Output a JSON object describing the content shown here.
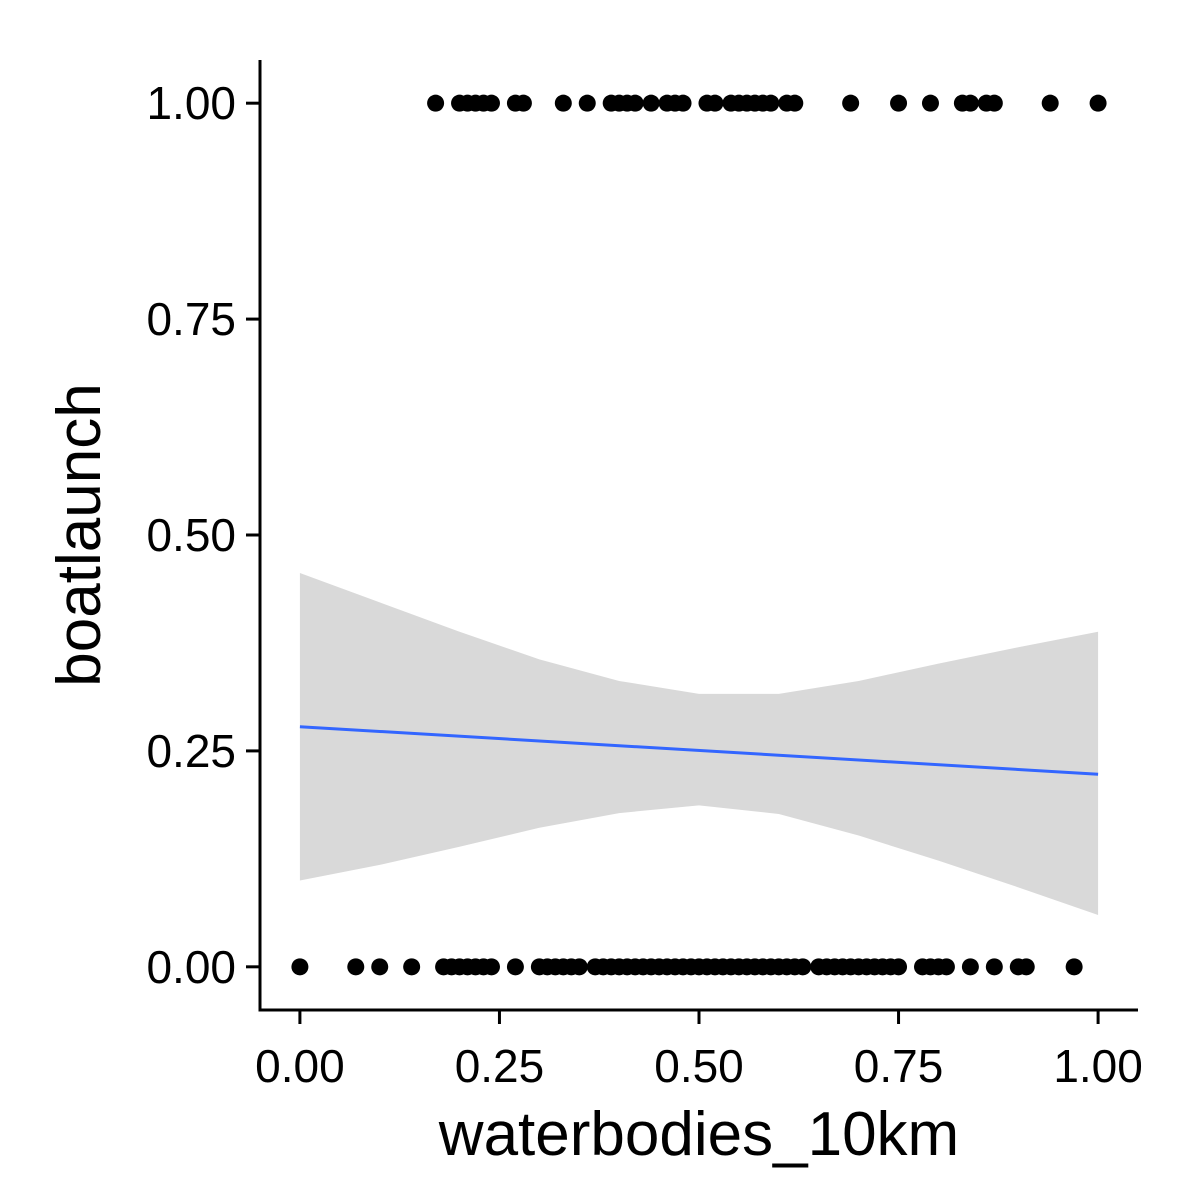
{
  "chart_data": {
    "type": "scatter",
    "title": "",
    "xlabel": "waterbodies_10km",
    "ylabel": "boatlaunch",
    "xlim": [
      -0.05,
      1.05
    ],
    "ylim": [
      -0.05,
      1.05
    ],
    "x_ticks": [
      0,
      0.25,
      0.5,
      0.75,
      1
    ],
    "x_tick_labels": [
      "0.00",
      "0.25",
      "0.50",
      "0.75",
      "1.00"
    ],
    "y_ticks": [
      0,
      0.25,
      0.5,
      0.75,
      1
    ],
    "y_tick_labels": [
      "0.00",
      "0.25",
      "0.50",
      "0.75",
      "1.00"
    ],
    "grid": false,
    "legend": "none",
    "colors": {
      "points": "#000000",
      "fit_line": "#3366ff",
      "ribbon": "#d9d9d9"
    },
    "series": [
      {
        "kind": "points",
        "x": [
          0.17,
          0.2,
          0.21,
          0.22,
          0.23,
          0.24,
          0.27,
          0.28,
          0.33,
          0.36,
          0.39,
          0.4,
          0.41,
          0.42,
          0.44,
          0.46,
          0.47,
          0.48,
          0.51,
          0.52,
          0.54,
          0.55,
          0.56,
          0.57,
          0.58,
          0.59,
          0.61,
          0.62,
          0.69,
          0.75,
          0.79,
          0.83,
          0.84,
          0.86,
          0.87,
          0.94,
          1.0
        ],
        "y": [
          1,
          1,
          1,
          1,
          1,
          1,
          1,
          1,
          1,
          1,
          1,
          1,
          1,
          1,
          1,
          1,
          1,
          1,
          1,
          1,
          1,
          1,
          1,
          1,
          1,
          1,
          1,
          1,
          1,
          1,
          1,
          1,
          1,
          1,
          1,
          1,
          1
        ]
      },
      {
        "kind": "points",
        "x": [
          0.0,
          0.07,
          0.1,
          0.14,
          0.18,
          0.19,
          0.2,
          0.21,
          0.22,
          0.23,
          0.24,
          0.27,
          0.3,
          0.31,
          0.32,
          0.33,
          0.34,
          0.35,
          0.37,
          0.38,
          0.39,
          0.4,
          0.41,
          0.42,
          0.43,
          0.44,
          0.45,
          0.46,
          0.47,
          0.48,
          0.49,
          0.5,
          0.51,
          0.52,
          0.53,
          0.54,
          0.55,
          0.56,
          0.57,
          0.58,
          0.59,
          0.6,
          0.61,
          0.62,
          0.63,
          0.65,
          0.66,
          0.67,
          0.68,
          0.69,
          0.7,
          0.71,
          0.72,
          0.73,
          0.74,
          0.75,
          0.78,
          0.79,
          0.8,
          0.81,
          0.84,
          0.87,
          0.9,
          0.91,
          0.97
        ],
        "y": [
          0,
          0,
          0,
          0,
          0,
          0,
          0,
          0,
          0,
          0,
          0,
          0,
          0,
          0,
          0,
          0,
          0,
          0,
          0,
          0,
          0,
          0,
          0,
          0,
          0,
          0,
          0,
          0,
          0,
          0,
          0,
          0,
          0,
          0,
          0,
          0,
          0,
          0,
          0,
          0,
          0,
          0,
          0,
          0,
          0,
          0,
          0,
          0,
          0,
          0,
          0,
          0,
          0,
          0,
          0,
          0,
          0,
          0,
          0,
          0,
          0,
          0,
          0,
          0,
          0
        ]
      },
      {
        "kind": "fit_line",
        "x": [
          0,
          1
        ],
        "y": [
          0.278,
          0.223
        ]
      },
      {
        "kind": "confidence_band",
        "x": [
          0,
          0.1,
          0.2,
          0.3,
          0.4,
          0.5,
          0.6,
          0.7,
          0.8,
          0.9,
          1.0
        ],
        "upper": [
          0.456,
          0.422,
          0.388,
          0.356,
          0.331,
          0.316,
          0.316,
          0.331,
          0.351,
          0.37,
          0.388
        ],
        "lower": [
          0.1,
          0.118,
          0.139,
          0.161,
          0.178,
          0.187,
          0.177,
          0.152,
          0.123,
          0.092,
          0.06
        ]
      }
    ]
  }
}
